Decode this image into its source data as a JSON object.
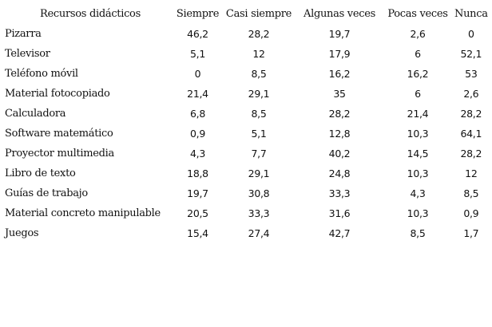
{
  "table": {
    "headers": [
      "Recursos didácticos",
      "Siempre",
      "Casi siempre",
      "Algunas veces",
      "Pocas veces",
      "Nunca"
    ],
    "rows": [
      {
        "label": "Pizarra",
        "values": [
          "46,2",
          "28,2",
          "19,7",
          "2,6",
          "0"
        ]
      },
      {
        "label": "Televisor",
        "values": [
          "5,1",
          "12",
          "17,9",
          "6",
          "52,1"
        ]
      },
      {
        "label": "Teléfono móvil",
        "values": [
          "0",
          "8,5",
          "16,2",
          "16,2",
          "53"
        ]
      },
      {
        "label": "Material fotocopiado",
        "values": [
          "21,4",
          "29,1",
          "35",
          "6",
          "2,6"
        ]
      },
      {
        "label": "Calculadora",
        "values": [
          "6,8",
          "8,5",
          "28,2",
          "21,4",
          "28,2"
        ]
      },
      {
        "label": "Software matemático",
        "values": [
          "0,9",
          "5,1",
          "12,8",
          "10,3",
          "64,1"
        ]
      },
      {
        "label": "Proyector multimedia",
        "values": [
          "4,3",
          "7,7",
          "40,2",
          "14,5",
          "28,2"
        ]
      },
      {
        "label": "Libro de texto",
        "values": [
          "18,8",
          "29,1",
          "24,8",
          "10,3",
          "12"
        ]
      },
      {
        "label": "Guías de trabajo",
        "values": [
          "19,7",
          "30,8",
          "33,3",
          "4,3",
          "8,5"
        ]
      },
      {
        "label": "Material concreto manipulable",
        "values": [
          "20,5",
          "33,3",
          "31,6",
          "10,3",
          "0,9"
        ]
      },
      {
        "label": "Juegos",
        "values": [
          "15,4",
          "27,4",
          "42,7",
          "8,5",
          "1,7"
        ]
      }
    ]
  }
}
